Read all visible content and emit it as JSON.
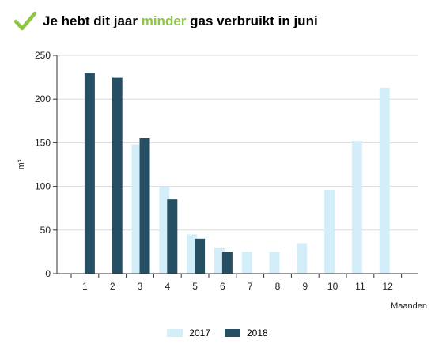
{
  "header": {
    "title_before": "Je hebt dit jaar",
    "title_accent": "minder",
    "title_after": "gas verbruikt in juni",
    "check_icon": "checkmark-icon",
    "accent_color": "#8dc63f"
  },
  "chart_data": {
    "type": "bar",
    "title": "Je hebt dit jaar minder gas verbruikt in juni",
    "xlabel": "Maanden",
    "ylabel": "m³",
    "ylim": [
      0,
      250
    ],
    "yticks": [
      0,
      50,
      100,
      150,
      200,
      250
    ],
    "grid": true,
    "legend_position": "bottom",
    "categories": [
      "1",
      "2",
      "3",
      "4",
      "5",
      "6",
      "7",
      "8",
      "9",
      "10",
      "11",
      "12"
    ],
    "series": [
      {
        "name": "2017",
        "color": "#d3eef8",
        "values": [
          null,
          null,
          148,
          100,
          45,
          30,
          25,
          25,
          35,
          96,
          152,
          213
        ]
      },
      {
        "name": "2018",
        "color": "#264f63",
        "values": [
          230,
          225,
          155,
          85,
          40,
          25,
          null,
          null,
          null,
          null,
          null,
          null
        ]
      }
    ]
  }
}
